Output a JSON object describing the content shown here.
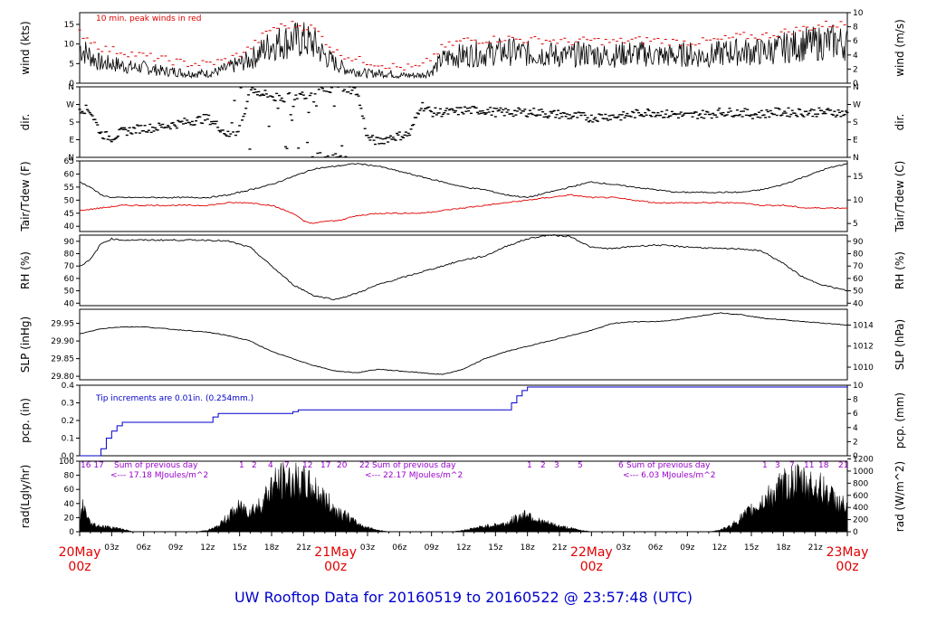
{
  "title": "UW Rooftop Data for 20160519  to  20160522 @ 23:57:48  (UTC)",
  "x_time_labels": [
    "03z",
    "06z",
    "09z",
    "12z",
    "15z",
    "18z",
    "21z",
    "03z",
    "06z",
    "09z",
    "12z",
    "15z",
    "18z",
    "21z",
    "03z",
    "06z",
    "09z",
    "12z",
    "15z",
    "18z",
    "21z"
  ],
  "x_day_labels": [
    {
      "date": "20May",
      "hour": "00z",
      "h": 0
    },
    {
      "date": "21May",
      "hour": "00z",
      "h": 24
    },
    {
      "date": "22May",
      "hour": "00z",
      "h": 48
    },
    {
      "date": "23May",
      "hour": "00z",
      "h": 72
    }
  ],
  "colors": {
    "frame": "#000000",
    "peak": "#e00000",
    "dew": "#e00000",
    "precip": "#0000cc",
    "note_purple": "#9900cc",
    "title": "#0000cc",
    "daylabel": "#e00000"
  },
  "chart_data": [
    {
      "type": "line",
      "name": "wind",
      "ylabel_left": "wind (kts)",
      "ylabel_right": "wind (m/s)",
      "ylim_left": [
        0,
        18
      ],
      "ylim_right": [
        0,
        10
      ],
      "yticks_left": [
        "0",
        "5",
        "10",
        "15"
      ],
      "yticks_right": [
        "0",
        "2",
        "4",
        "6",
        "8",
        "10"
      ],
      "annotation": "10 min. peak winds in red",
      "series": [
        {
          "role": "wind",
          "x": [
            0,
            1,
            2,
            3,
            4,
            5,
            6,
            7,
            8,
            9,
            10,
            11,
            12,
            13,
            14,
            15,
            16,
            17,
            18,
            19,
            20,
            21,
            22,
            23,
            24,
            25,
            26,
            27,
            28,
            29,
            30,
            31,
            32,
            33,
            34,
            35,
            36,
            37,
            38,
            39,
            40,
            41,
            42,
            43,
            44,
            45,
            46,
            47,
            48,
            49,
            50,
            51,
            52,
            53,
            54,
            55,
            56,
            57,
            58,
            59,
            60,
            61,
            62,
            63,
            64,
            65,
            66,
            67,
            68,
            69,
            70,
            71,
            72
          ],
          "y": [
            9,
            7,
            5,
            5,
            4.5,
            4,
            4,
            3.5,
            3,
            3,
            2.5,
            2.5,
            2.5,
            3,
            4,
            5,
            6,
            8,
            10,
            10.5,
            11,
            11,
            10,
            7,
            5,
            3.5,
            3,
            2.5,
            2.5,
            2.5,
            2,
            2,
            2,
            3,
            6,
            7,
            7,
            7.5,
            7.5,
            8,
            8,
            8,
            7.5,
            7.5,
            7.5,
            7,
            7,
            7.5,
            7.5,
            7,
            7,
            7.5,
            7.5,
            7.5,
            7,
            7,
            7,
            7.5,
            7,
            7,
            7.5,
            8,
            8,
            8,
            8,
            8.5,
            9,
            9.5,
            10,
            10,
            10.5,
            10.5,
            10
          ]
        },
        {
          "role": "peak",
          "x": [
            0,
            2,
            4,
            6,
            8,
            10,
            12,
            14,
            16,
            18,
            20,
            22,
            24,
            26,
            28,
            30,
            32,
            34,
            36,
            38,
            40,
            42,
            44,
            46,
            48,
            50,
            52,
            54,
            56,
            58,
            60,
            62,
            64,
            66,
            68,
            70,
            72
          ],
          "y": [
            13,
            9,
            8,
            7,
            6,
            5,
            5,
            6,
            9,
            14,
            15,
            14,
            8,
            6,
            5,
            4,
            4,
            9,
            11,
            11,
            11.5,
            11,
            11,
            10.5,
            11,
            10.5,
            11,
            11,
            10.5,
            10.5,
            11,
            12,
            12,
            13,
            14,
            15,
            15
          ]
        }
      ]
    },
    {
      "type": "scatter",
      "name": "direction",
      "ylabel_left": "dir.",
      "ylabel_right": "dir.",
      "ylim_left": [
        0,
        360
      ],
      "yticks_left": [
        "N",
        "E",
        "S",
        "W",
        "N"
      ],
      "yticks_right": [
        "N",
        "E",
        "S",
        "W",
        "N"
      ],
      "x": [
        0,
        1,
        2,
        3,
        4,
        5,
        6,
        7,
        8,
        9,
        10,
        11,
        12,
        13,
        14,
        15,
        16,
        17,
        18,
        19,
        20,
        21,
        22,
        23,
        24,
        25,
        26,
        27,
        28,
        29,
        30,
        31,
        32,
        33,
        34,
        35,
        36,
        37,
        38,
        39,
        40,
        41,
        42,
        43,
        44,
        45,
        46,
        47,
        48,
        49,
        50,
        51,
        52,
        53,
        54,
        55,
        56,
        57,
        58,
        59,
        60,
        61,
        62,
        63,
        64,
        65,
        66,
        67,
        68,
        69,
        70,
        71,
        72
      ],
      "y": [
        250,
        240,
        120,
        100,
        130,
        140,
        150,
        150,
        160,
        170,
        180,
        190,
        200,
        160,
        110,
        140,
        350,
        330,
        310,
        300,
        310,
        320,
        330,
        340,
        360,
        350,
        340,
        100,
        80,
        100,
        110,
        120,
        270,
        230,
        230,
        230,
        240,
        240,
        240,
        230,
        230,
        230,
        230,
        230,
        220,
        220,
        210,
        210,
        200,
        210,
        210,
        210,
        220,
        230,
        230,
        220,
        220,
        210,
        220,
        220,
        230,
        230,
        230,
        220,
        220,
        230,
        230,
        230,
        230,
        230,
        230,
        230,
        220
      ]
    },
    {
      "type": "line",
      "name": "temperature",
      "ylabel_left": "Tair/Tdew (F)",
      "ylabel_right": "Tair/Tdew (C)",
      "ylim_left": [
        38,
        65
      ],
      "ylim_right": [
        3.3,
        18.3
      ],
      "yticks_left": [
        "40",
        "45",
        "50",
        "55",
        "60",
        "65"
      ],
      "yticks_right": [
        "5",
        "10",
        "15"
      ],
      "series": [
        {
          "role": "tair",
          "x": [
            0,
            1,
            2,
            3,
            4,
            6,
            8,
            10,
            12,
            14,
            16,
            18,
            20,
            22,
            24,
            26,
            28,
            30,
            32,
            34,
            36,
            38,
            40,
            42,
            44,
            46,
            48,
            50,
            52,
            54,
            56,
            58,
            60,
            62,
            64,
            66,
            68,
            70,
            72
          ],
          "y": [
            57,
            55,
            52,
            51,
            51,
            51,
            51,
            51,
            51,
            52,
            54,
            56,
            59,
            62,
            63,
            64,
            63,
            61,
            59,
            57,
            55,
            54,
            52,
            51,
            53,
            55,
            57,
            56,
            55,
            54,
            53,
            53,
            53,
            53,
            54,
            56,
            59,
            62,
            64
          ]
        },
        {
          "role": "tdew",
          "x": [
            0,
            2,
            4,
            6,
            8,
            10,
            12,
            14,
            16,
            18,
            20,
            21,
            22,
            23,
            24,
            26,
            28,
            30,
            32,
            34,
            36,
            38,
            40,
            42,
            44,
            46,
            48,
            50,
            52,
            54,
            56,
            58,
            60,
            62,
            64,
            66,
            68,
            70,
            72
          ],
          "y": [
            46,
            47,
            48,
            48,
            48,
            48,
            48,
            49,
            49,
            48,
            45,
            42,
            41,
            42,
            42,
            44,
            45,
            45,
            45,
            46,
            47,
            48,
            49,
            50,
            51,
            52,
            51,
            51,
            50,
            49,
            49,
            49,
            49,
            49,
            48,
            48,
            47,
            47,
            47
          ]
        }
      ]
    },
    {
      "type": "line",
      "name": "relative_humidity",
      "ylabel_left": "RH (%)",
      "ylabel_right": "RH (%)",
      "ylim_left": [
        38,
        95
      ],
      "yticks_left": [
        "40",
        "50",
        "60",
        "70",
        "80",
        "90"
      ],
      "yticks_right": [
        "40",
        "50",
        "60",
        "70",
        "80",
        "90"
      ],
      "x": [
        0,
        1,
        2,
        3,
        4,
        6,
        8,
        10,
        12,
        14,
        16,
        18,
        20,
        22,
        24,
        26,
        28,
        30,
        32,
        34,
        36,
        38,
        40,
        42,
        44,
        46,
        48,
        50,
        52,
        54,
        56,
        58,
        60,
        62,
        64,
        66,
        68,
        70,
        72
      ],
      "y": [
        70,
        75,
        88,
        92,
        91,
        91,
        91,
        91,
        91,
        90,
        85,
        70,
        55,
        46,
        43,
        48,
        55,
        60,
        65,
        70,
        75,
        78,
        86,
        92,
        95,
        94,
        85,
        84,
        86,
        87,
        86,
        85,
        84,
        84,
        82,
        72,
        60,
        54,
        50
      ]
    },
    {
      "type": "line",
      "name": "sea_level_pressure",
      "ylabel_left": "SLP (inHg)",
      "ylabel_right": "SLP (hPa)",
      "ylim_left": [
        29.79,
        29.99
      ],
      "ylim_right": [
        1008.8,
        1015.5
      ],
      "yticks_left": [
        "29.80",
        "29.85",
        "29.90",
        "29.95"
      ],
      "yticks_right": [
        "1010",
        "1012",
        "1014"
      ],
      "x": [
        0,
        2,
        4,
        6,
        8,
        10,
        12,
        14,
        16,
        18,
        20,
        22,
        24,
        26,
        28,
        30,
        32,
        34,
        36,
        38,
        40,
        42,
        44,
        46,
        48,
        50,
        52,
        54,
        56,
        58,
        60,
        62,
        64,
        66,
        68,
        70,
        72
      ],
      "y": [
        29.92,
        29.935,
        29.94,
        29.94,
        29.935,
        29.93,
        29.925,
        29.915,
        29.9,
        29.87,
        29.85,
        29.83,
        29.815,
        29.81,
        29.82,
        29.815,
        29.81,
        29.805,
        29.82,
        29.85,
        29.87,
        29.885,
        29.9,
        29.915,
        29.93,
        29.95,
        29.955,
        29.955,
        29.96,
        29.97,
        29.98,
        29.975,
        29.965,
        29.96,
        29.955,
        29.95,
        29.945
      ]
    },
    {
      "type": "line",
      "name": "precipitation",
      "ylabel_left": "pcp. (in)",
      "ylabel_right": "pcp. (mm)",
      "ylim_left": [
        0,
        0.4
      ],
      "ylim_right": [
        0,
        10
      ],
      "yticks_left": [
        "0.0",
        "0.1",
        "0.2",
        "0.3",
        "0.4"
      ],
      "yticks_right": [
        "0",
        "2",
        "4",
        "6",
        "8",
        "10"
      ],
      "annotation": "Tip increments are 0.01in. (0.254mm.)",
      "x": [
        0,
        1.5,
        2,
        2.5,
        3,
        3.5,
        4,
        6,
        12,
        12.5,
        13,
        20,
        20.5,
        24,
        36,
        40,
        40.5,
        41,
        41.5,
        42,
        72
      ],
      "y": [
        0,
        0,
        0.04,
        0.1,
        0.14,
        0.17,
        0.19,
        0.19,
        0.19,
        0.22,
        0.24,
        0.25,
        0.26,
        0.26,
        0.26,
        0.26,
        0.3,
        0.34,
        0.37,
        0.39,
        0.39
      ]
    },
    {
      "type": "area",
      "name": "radiation",
      "ylabel_left": "rad(Lgly/hr)",
      "ylabel_right": "rad (W/m^2)",
      "ylim_left": [
        0,
        100
      ],
      "ylim_right": [
        0,
        1163
      ],
      "yticks_left": [
        "0",
        "20",
        "40",
        "60",
        "80",
        "100"
      ],
      "yticks_right": [
        "0",
        "200",
        "400",
        "600",
        "800",
        "1000",
        "1200"
      ],
      "daily_sums": [
        {
          "hours": "16  17",
          "text": "Sum of previous day",
          "total": "<--- 17.18 MJoules/m^2"
        },
        {
          "hours": "22",
          "text": "Sum of previous day",
          "total": "<--- 22.17 MJoules/m^2"
        },
        {
          "hours": "6",
          "text": "Sum of previous day",
          "total": "<--- 6.03 MJoules/m^2"
        }
      ],
      "hour_marks_day1": [
        "1",
        "2",
        "4",
        "7",
        "12",
        "17",
        "20"
      ],
      "hour_marks_day2": [
        "1",
        "2",
        "3",
        "5"
      ],
      "hour_marks_day3": [
        "1",
        "3",
        "7",
        "11",
        "18",
        "21"
      ],
      "x": [
        0,
        0.3,
        1,
        2,
        3,
        4,
        5,
        11,
        12,
        13,
        14,
        15,
        16,
        17,
        18,
        19,
        20,
        21,
        22,
        23,
        24,
        25,
        26,
        27,
        28,
        29,
        35,
        36,
        38,
        40,
        41,
        42,
        43,
        44,
        45,
        47,
        48,
        59,
        60,
        61,
        62,
        63,
        64,
        65,
        66,
        67,
        68,
        69,
        70,
        71,
        72
      ],
      "y": [
        10,
        50,
        15,
        10,
        8,
        5,
        0,
        0,
        3,
        10,
        30,
        45,
        40,
        50,
        85,
        95,
        95,
        90,
        80,
        60,
        40,
        30,
        15,
        8,
        3,
        0,
        0,
        3,
        10,
        15,
        25,
        35,
        20,
        15,
        10,
        3,
        0,
        0,
        3,
        10,
        25,
        40,
        55,
        70,
        85,
        95,
        90,
        85,
        75,
        55,
        45
      ]
    }
  ]
}
